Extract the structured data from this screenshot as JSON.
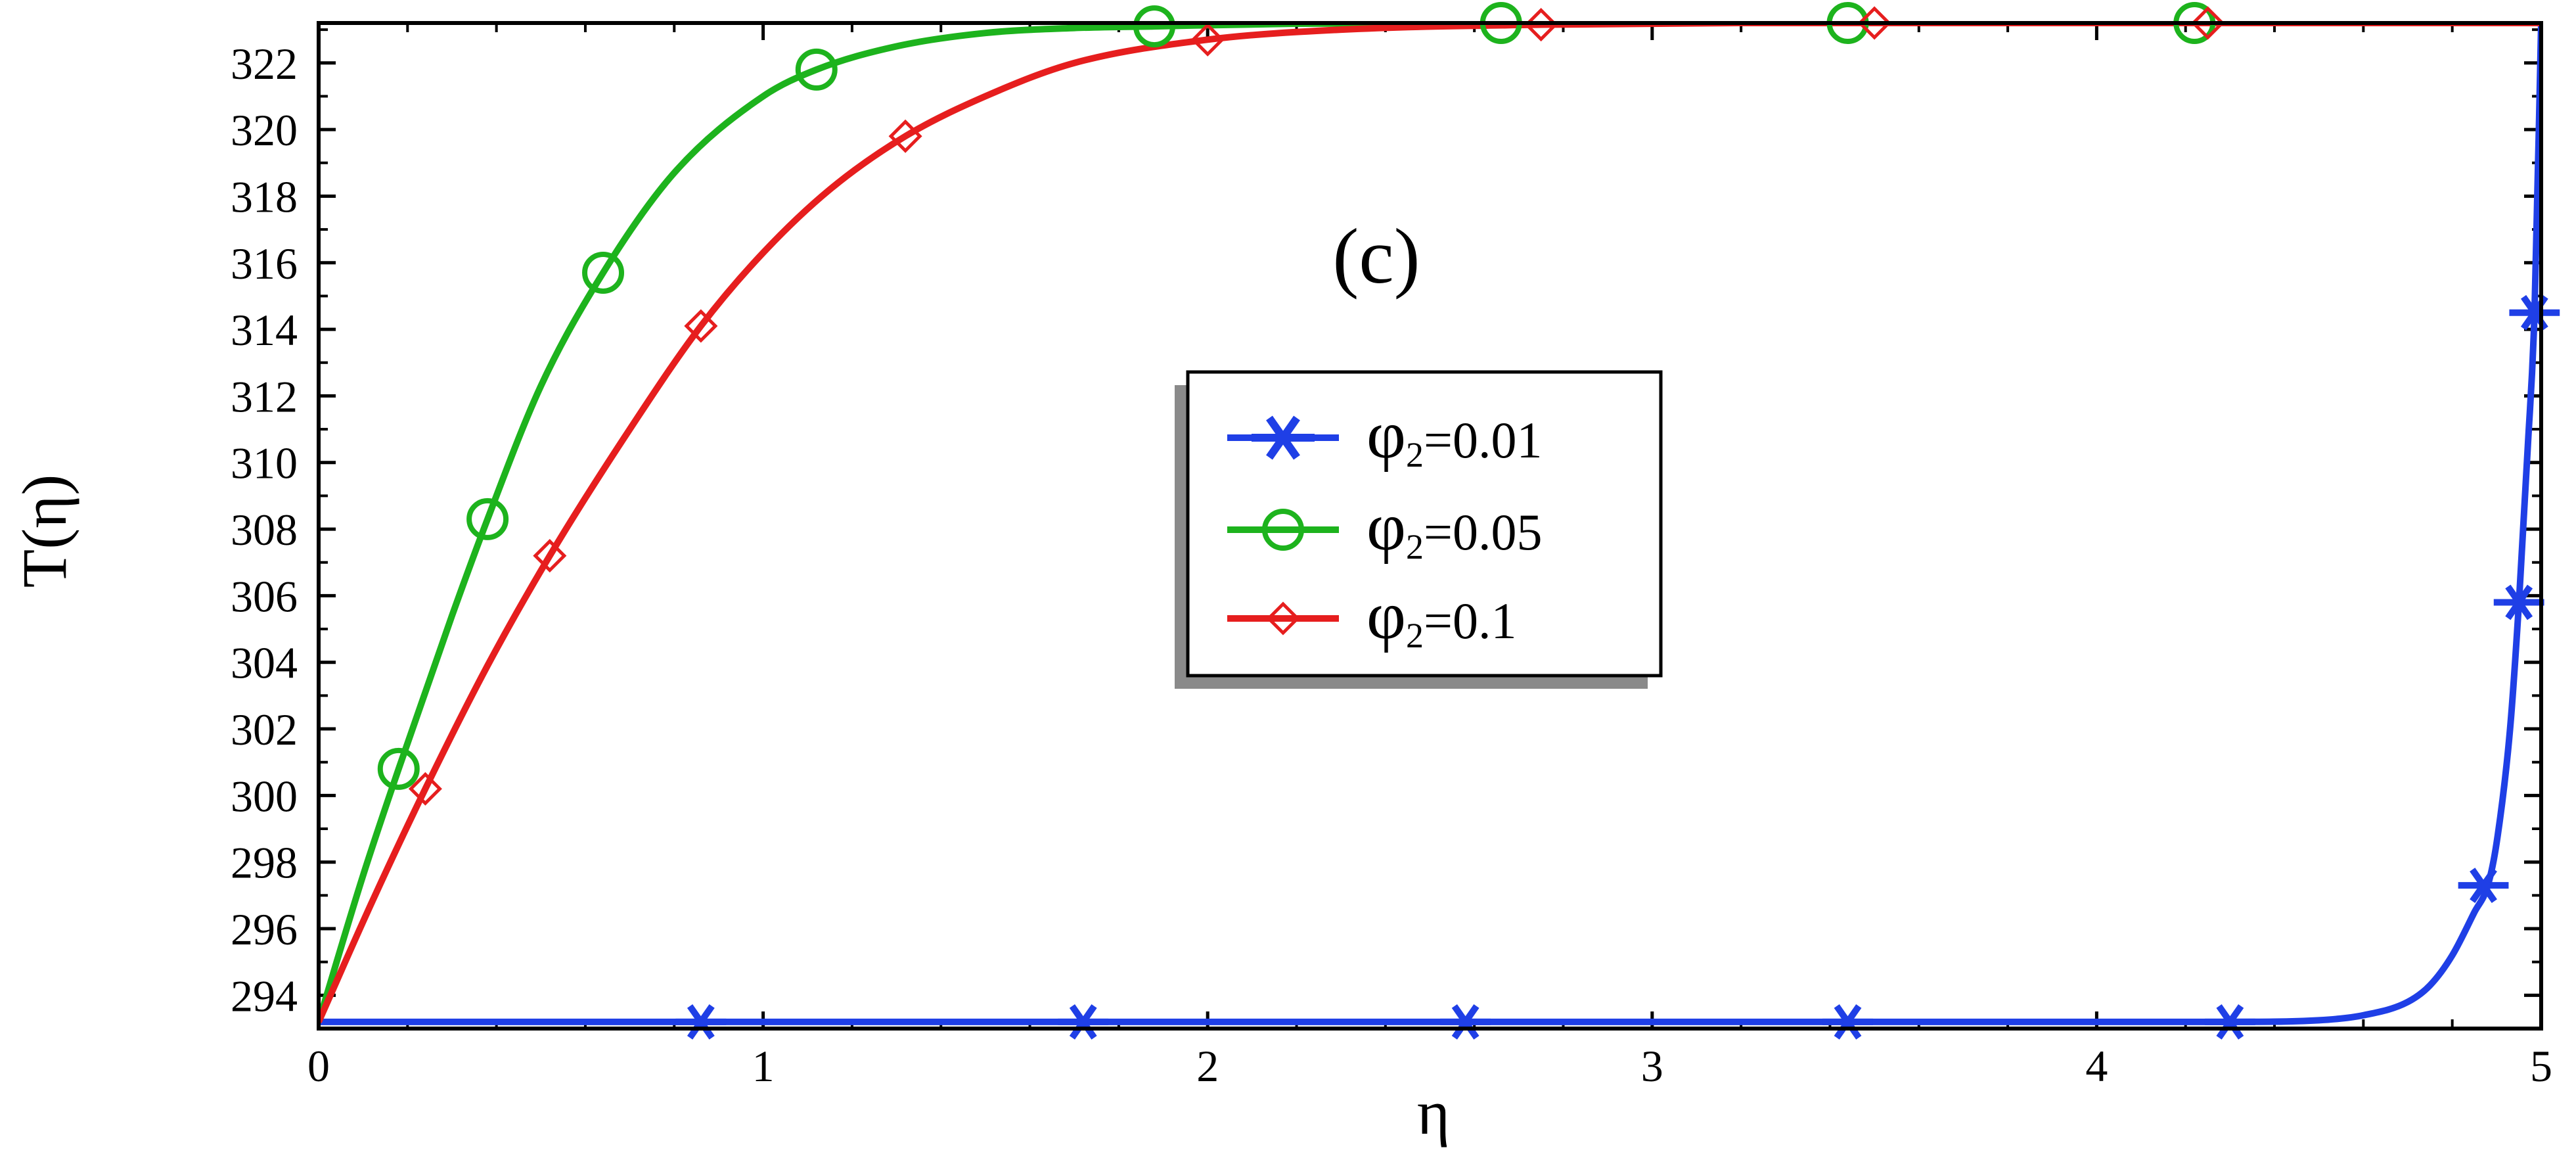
{
  "chart_data": {
    "type": "line",
    "xlabel": "η",
    "ylabel": "T(η)",
    "annotation": "(c)",
    "xlim": [
      0,
      5
    ],
    "ylim": [
      293,
      323.2
    ],
    "x_ticks": [
      0,
      1,
      2,
      3,
      4,
      5
    ],
    "y_ticks": [
      294,
      296,
      298,
      300,
      302,
      304,
      306,
      308,
      310,
      312,
      314,
      316,
      318,
      320,
      322
    ],
    "grid": false,
    "legend_position": "center",
    "series": [
      {
        "name": "φ2=0.01",
        "legend_symbol": "φ",
        "legend_sub": "2",
        "legend_value": "=0.01",
        "color": "#1f3fe6",
        "marker": "asterisk",
        "x": [
          0,
          0.5,
          1,
          1.5,
          2,
          2.5,
          3,
          3.5,
          4,
          4.3,
          4.5,
          4.6,
          4.7,
          4.75,
          4.8,
          4.85,
          4.88,
          4.9,
          4.93,
          4.95,
          4.97,
          4.985,
          5.0
        ],
        "y": [
          293.2,
          293.2,
          293.2,
          293.2,
          293.2,
          293.2,
          293.2,
          293.2,
          293.2,
          293.2,
          293.25,
          293.4,
          293.8,
          294.3,
          295.2,
          296.5,
          297.3,
          298.6,
          302.0,
          305.8,
          310.5,
          314.5,
          323.2
        ],
        "marker_x": [
          0.86,
          1.72,
          2.58,
          3.44,
          4.3,
          4.87,
          4.95,
          4.985
        ],
        "marker_y": [
          293.2,
          293.2,
          293.2,
          293.2,
          293.2,
          297.3,
          305.8,
          314.5
        ]
      },
      {
        "name": "φ2=0.05",
        "legend_symbol": "φ",
        "legend_sub": "2",
        "legend_value": "=0.05",
        "color": "#1db31d",
        "marker": "circle",
        "x": [
          0,
          0.1,
          0.18,
          0.3,
          0.38,
          0.5,
          0.64,
          0.8,
          1.0,
          1.12,
          1.3,
          1.5,
          1.7,
          1.88,
          2.2,
          2.6,
          3.0,
          3.5,
          4.0,
          4.5,
          5.0
        ],
        "y": [
          293.2,
          297.6,
          300.8,
          305.4,
          308.3,
          312.3,
          315.7,
          318.7,
          321.0,
          321.8,
          322.5,
          322.9,
          323.05,
          323.1,
          323.18,
          323.2,
          323.2,
          323.2,
          323.2,
          323.2,
          323.2
        ],
        "marker_x": [
          0.18,
          0.38,
          0.64,
          1.12,
          1.88,
          2.66,
          3.44,
          4.22
        ],
        "marker_y": [
          300.8,
          308.3,
          315.7,
          321.8,
          323.1,
          323.2,
          323.2,
          323.2
        ]
      },
      {
        "name": "φ2=0.1",
        "legend_symbol": "φ",
        "legend_sub": "2",
        "legend_value": "=0.1",
        "color": "#e61e1e",
        "marker": "diamond",
        "x": [
          0,
          0.12,
          0.24,
          0.38,
          0.52,
          0.7,
          0.86,
          1.0,
          1.15,
          1.32,
          1.5,
          1.7,
          2.0,
          2.3,
          2.75,
          3.2,
          3.5,
          4.0,
          4.5,
          5.0
        ],
        "y": [
          293.2,
          296.8,
          300.2,
          303.9,
          307.2,
          311.0,
          314.1,
          316.3,
          318.2,
          319.8,
          321.0,
          322.0,
          322.7,
          323.0,
          323.15,
          323.2,
          323.2,
          323.2,
          323.2,
          323.2
        ],
        "marker_x": [
          0.24,
          0.52,
          0.86,
          1.32,
          2.0,
          2.75,
          3.5,
          4.25
        ],
        "marker_y": [
          300.2,
          307.2,
          314.1,
          319.8,
          322.7,
          323.15,
          323.2,
          323.2
        ]
      }
    ]
  }
}
